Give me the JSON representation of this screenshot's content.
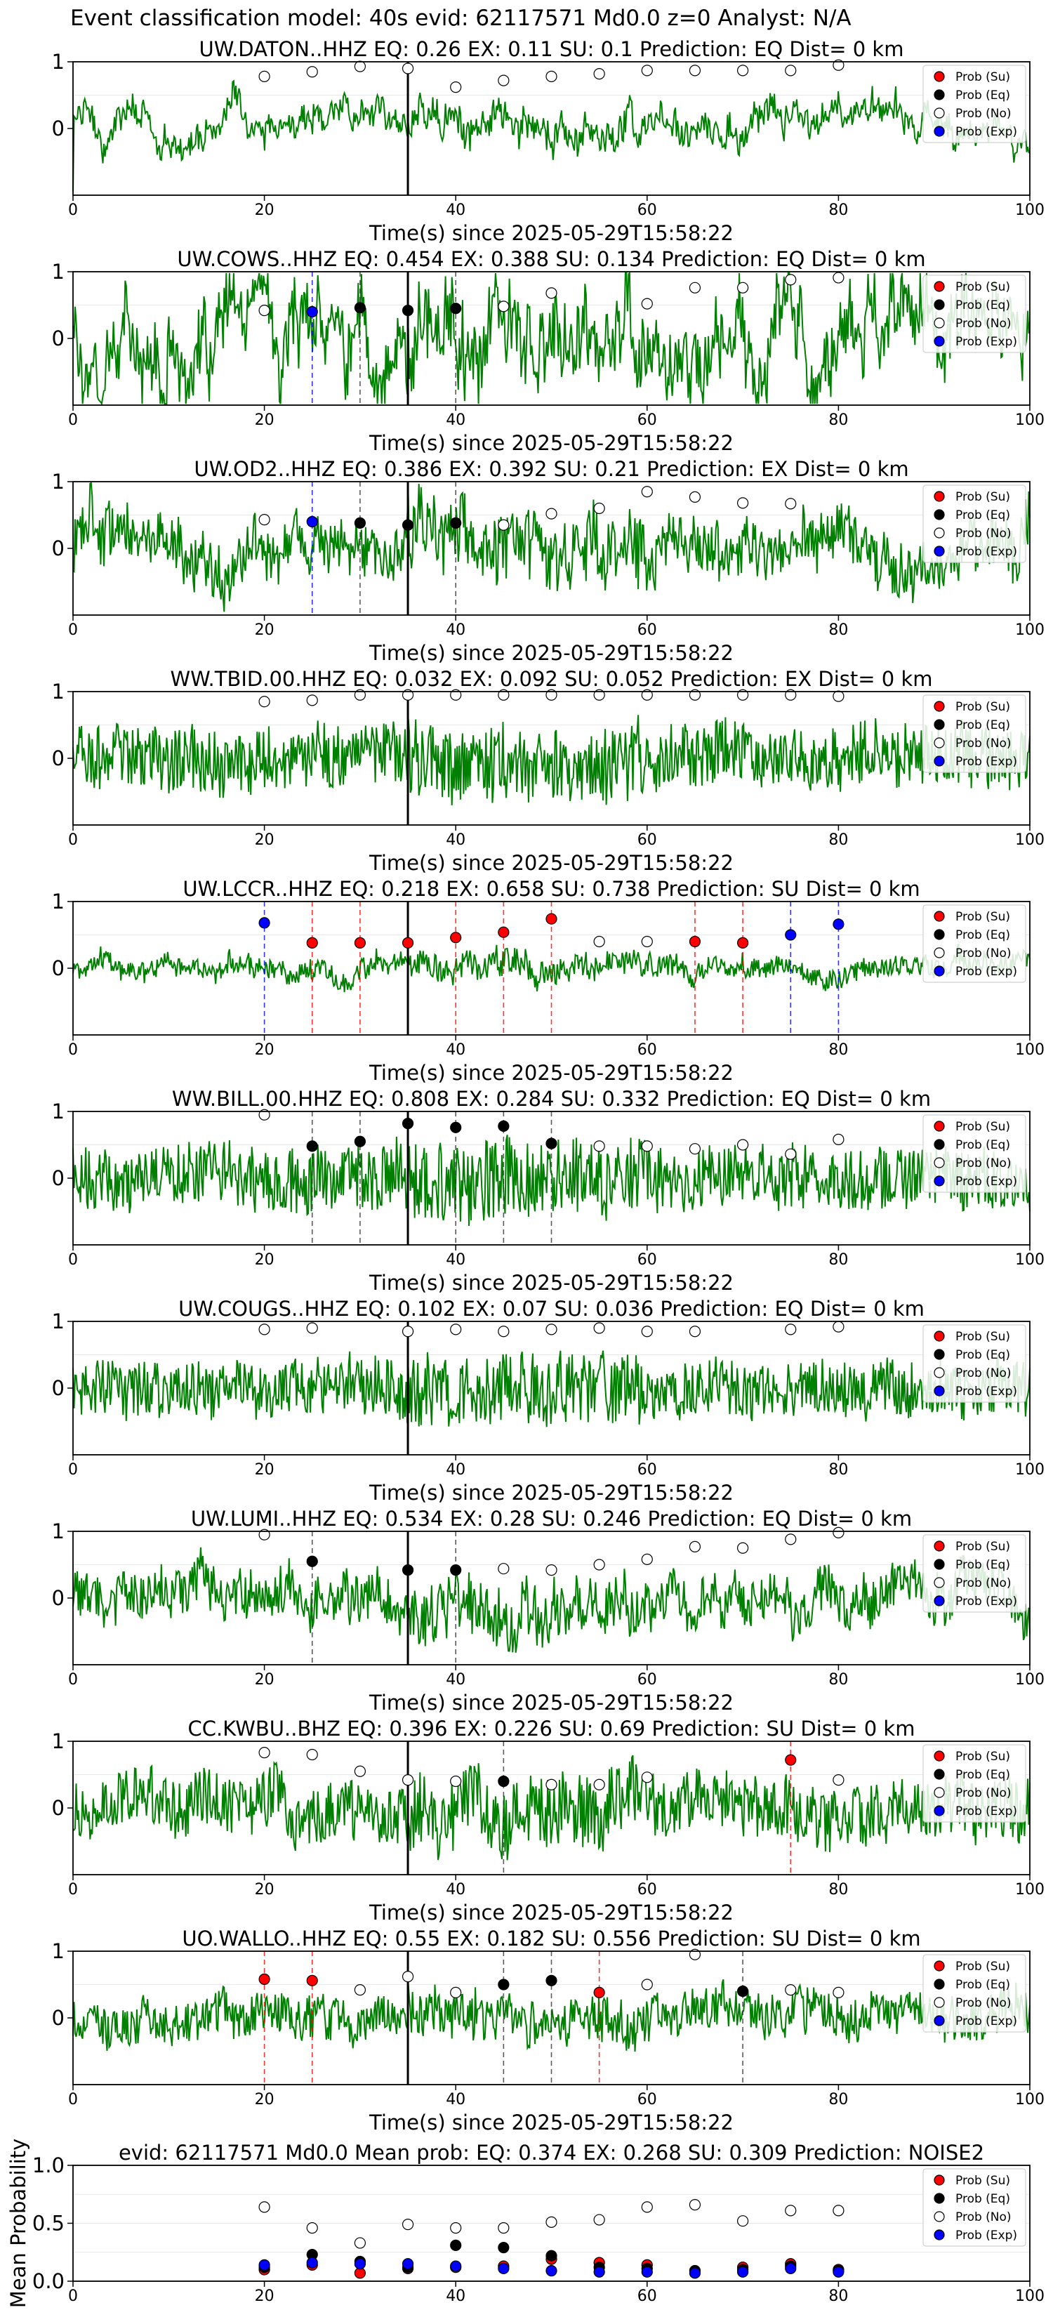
{
  "suptitle": "Event classification model: 40s evid: 62117571 Md0.0 z=0 Analyst: N/A",
  "legend_labels": [
    "Prob (Su)",
    "Prob (Eq)",
    "Prob (No)",
    "Prob (Exp)"
  ],
  "colors": {
    "su": "#ff0000",
    "eq": "#000000",
    "no": "#ffffff",
    "exp": "#0000ff",
    "trace": "#008000"
  },
  "chart_data": [
    {
      "type": "line",
      "title": "UW.DATON..HHZ   EQ: 0.26   EX: 0.11   SU: 0.1   Prediction: EQ    Dist= 0 km",
      "xlabel": "Time(s) since 2025-05-29T15:58:22",
      "xlim": [
        0,
        100
      ],
      "xticks": [
        0,
        20,
        40,
        60,
        80,
        100
      ],
      "yticks": [
        0,
        1
      ],
      "vline_black": 35,
      "amp": 0.35,
      "drift": 0.25,
      "seed": 3,
      "markers": [
        {
          "x": 20,
          "y": 0.78,
          "class": "no"
        },
        {
          "x": 25,
          "y": 0.85,
          "class": "no"
        },
        {
          "x": 30,
          "y": 0.93,
          "class": "no"
        },
        {
          "x": 35,
          "y": 0.9,
          "class": "no"
        },
        {
          "x": 40,
          "y": 0.62,
          "class": "no"
        },
        {
          "x": 45,
          "y": 0.72,
          "class": "no"
        },
        {
          "x": 50,
          "y": 0.78,
          "class": "no"
        },
        {
          "x": 55,
          "y": 0.82,
          "class": "no"
        },
        {
          "x": 60,
          "y": 0.87,
          "class": "no"
        },
        {
          "x": 65,
          "y": 0.87,
          "class": "no"
        },
        {
          "x": 70,
          "y": 0.87,
          "class": "no"
        },
        {
          "x": 75,
          "y": 0.87,
          "class": "no"
        },
        {
          "x": 80,
          "y": 0.95,
          "class": "no"
        }
      ]
    },
    {
      "type": "line",
      "title": "UW.COWS..HHZ   EQ: 0.454   EX: 0.388   SU: 0.134   Prediction: EQ    Dist= 0 km",
      "xlabel": "Time(s) since 2025-05-29T15:58:22",
      "xlim": [
        0,
        100
      ],
      "xticks": [
        0,
        20,
        40,
        60,
        80,
        100
      ],
      "yticks": [
        0,
        1
      ],
      "vline_black": 35,
      "amp": 0.9,
      "drift": 0.6,
      "seed": 7,
      "markers": [
        {
          "x": 20,
          "y": 0.42,
          "class": "no"
        },
        {
          "x": 25,
          "y": 0.4,
          "class": "exp"
        },
        {
          "x": 30,
          "y": 0.46,
          "class": "eq"
        },
        {
          "x": 35,
          "y": 0.42,
          "class": "eq"
        },
        {
          "x": 40,
          "y": 0.45,
          "class": "eq"
        },
        {
          "x": 45,
          "y": 0.48,
          "class": "no"
        },
        {
          "x": 50,
          "y": 0.68,
          "class": "no"
        },
        {
          "x": 60,
          "y": 0.52,
          "class": "no"
        },
        {
          "x": 65,
          "y": 0.76,
          "class": "no"
        },
        {
          "x": 70,
          "y": 0.76,
          "class": "no"
        },
        {
          "x": 75,
          "y": 0.88,
          "class": "no"
        },
        {
          "x": 80,
          "y": 0.91,
          "class": "no"
        }
      ]
    },
    {
      "type": "line",
      "title": "UW.OD2..HHZ   EQ: 0.386   EX: 0.392   SU: 0.21   Prediction: EX    Dist= 0 km",
      "xlabel": "Time(s) since 2025-05-29T15:58:22",
      "xlim": [
        0,
        100
      ],
      "xticks": [
        0,
        20,
        40,
        60,
        80,
        100
      ],
      "yticks": [
        0,
        1
      ],
      "vline_black": 35,
      "amp": 0.75,
      "drift": 0.3,
      "seed": 11,
      "markers": [
        {
          "x": 20,
          "y": 0.43,
          "class": "no"
        },
        {
          "x": 25,
          "y": 0.4,
          "class": "exp"
        },
        {
          "x": 30,
          "y": 0.38,
          "class": "eq"
        },
        {
          "x": 35,
          "y": 0.35,
          "class": "eq"
        },
        {
          "x": 40,
          "y": 0.38,
          "class": "eq"
        },
        {
          "x": 45,
          "y": 0.35,
          "class": "no"
        },
        {
          "x": 50,
          "y": 0.52,
          "class": "no"
        },
        {
          "x": 55,
          "y": 0.6,
          "class": "no"
        },
        {
          "x": 60,
          "y": 0.85,
          "class": "no"
        },
        {
          "x": 65,
          "y": 0.77,
          "class": "no"
        },
        {
          "x": 70,
          "y": 0.68,
          "class": "no"
        },
        {
          "x": 75,
          "y": 0.67,
          "class": "no"
        }
      ]
    },
    {
      "type": "line",
      "title": "WW.TBID.00.HHZ   EQ: 0.032   EX: 0.092   SU: 0.052   Prediction: EX    Dist= 0 km",
      "xlabel": "Time(s) since 2025-05-29T15:58:22",
      "xlim": [
        0,
        100
      ],
      "xticks": [
        0,
        20,
        40,
        60,
        80,
        100
      ],
      "yticks": [
        0,
        1
      ],
      "vline_black": 35,
      "amp": 0.95,
      "drift": 0.1,
      "seed": 19,
      "markers": [
        {
          "x": 20,
          "y": 0.85,
          "class": "no"
        },
        {
          "x": 25,
          "y": 0.87,
          "class": "no"
        },
        {
          "x": 30,
          "y": 0.95,
          "class": "no"
        },
        {
          "x": 35,
          "y": 0.95,
          "class": "no"
        },
        {
          "x": 40,
          "y": 0.95,
          "class": "no"
        },
        {
          "x": 45,
          "y": 0.95,
          "class": "no"
        },
        {
          "x": 50,
          "y": 0.95,
          "class": "no"
        },
        {
          "x": 55,
          "y": 0.95,
          "class": "no"
        },
        {
          "x": 60,
          "y": 0.95,
          "class": "no"
        },
        {
          "x": 65,
          "y": 0.95,
          "class": "no"
        },
        {
          "x": 70,
          "y": 0.95,
          "class": "no"
        },
        {
          "x": 75,
          "y": 0.95,
          "class": "no"
        },
        {
          "x": 80,
          "y": 0.93,
          "class": "no"
        }
      ]
    },
    {
      "type": "line",
      "title": "UW.LCCR..HHZ   EQ: 0.218   EX: 0.658   SU: 0.738   Prediction: SU    Dist= 0 km",
      "xlabel": "Time(s) since 2025-05-29T15:58:22",
      "xlim": [
        0,
        100
      ],
      "xticks": [
        0,
        20,
        40,
        60,
        80,
        100
      ],
      "yticks": [
        0,
        1
      ],
      "vline_black": 35,
      "amp": 0.3,
      "drift": 0.1,
      "seed": 23,
      "markers": [
        {
          "x": 20,
          "y": 0.68,
          "class": "exp"
        },
        {
          "x": 25,
          "y": 0.38,
          "class": "su"
        },
        {
          "x": 30,
          "y": 0.38,
          "class": "su"
        },
        {
          "x": 35,
          "y": 0.38,
          "class": "su"
        },
        {
          "x": 40,
          "y": 0.46,
          "class": "su"
        },
        {
          "x": 45,
          "y": 0.54,
          "class": "su"
        },
        {
          "x": 50,
          "y": 0.74,
          "class": "su"
        },
        {
          "x": 55,
          "y": 0.4,
          "class": "no"
        },
        {
          "x": 60,
          "y": 0.4,
          "class": "no"
        },
        {
          "x": 65,
          "y": 0.4,
          "class": "su"
        },
        {
          "x": 70,
          "y": 0.38,
          "class": "su"
        },
        {
          "x": 75,
          "y": 0.5,
          "class": "exp"
        },
        {
          "x": 80,
          "y": 0.66,
          "class": "exp"
        }
      ]
    },
    {
      "type": "line",
      "title": "WW.BILL.00.HHZ   EQ: 0.808   EX: 0.284   SU: 0.332   Prediction: EQ    Dist= 0 km",
      "xlabel": "Time(s) since 2025-05-29T15:58:22",
      "xlim": [
        0,
        100
      ],
      "xticks": [
        0,
        20,
        40,
        60,
        80,
        100
      ],
      "yticks": [
        0,
        1
      ],
      "vline_black": 35,
      "amp": 0.95,
      "drift": 0.1,
      "seed": 29,
      "markers": [
        {
          "x": 20,
          "y": 0.95,
          "class": "no"
        },
        {
          "x": 25,
          "y": 0.48,
          "class": "eq"
        },
        {
          "x": 30,
          "y": 0.55,
          "class": "eq"
        },
        {
          "x": 35,
          "y": 0.82,
          "class": "eq"
        },
        {
          "x": 40,
          "y": 0.76,
          "class": "eq"
        },
        {
          "x": 45,
          "y": 0.78,
          "class": "eq"
        },
        {
          "x": 50,
          "y": 0.52,
          "class": "eq"
        },
        {
          "x": 55,
          "y": 0.48,
          "class": "no"
        },
        {
          "x": 60,
          "y": 0.48,
          "class": "no"
        },
        {
          "x": 65,
          "y": 0.44,
          "class": "no"
        },
        {
          "x": 70,
          "y": 0.5,
          "class": "no"
        },
        {
          "x": 75,
          "y": 0.36,
          "class": "no"
        },
        {
          "x": 80,
          "y": 0.58,
          "class": "no"
        }
      ]
    },
    {
      "type": "line",
      "title": "UW.COUGS..HHZ   EQ: 0.102   EX: 0.07   SU: 0.036   Prediction: EQ    Dist= 0 km",
      "xlabel": "Time(s) since 2025-05-29T15:58:22",
      "xlim": [
        0,
        100
      ],
      "xticks": [
        0,
        20,
        40,
        60,
        80,
        100
      ],
      "yticks": [
        0,
        1
      ],
      "vline_black": 35,
      "amp": 0.85,
      "drift": 0.1,
      "seed": 31,
      "markers": [
        {
          "x": 20,
          "y": 0.88,
          "class": "no"
        },
        {
          "x": 25,
          "y": 0.9,
          "class": "no"
        },
        {
          "x": 35,
          "y": 0.85,
          "class": "no"
        },
        {
          "x": 40,
          "y": 0.88,
          "class": "no"
        },
        {
          "x": 45,
          "y": 0.85,
          "class": "no"
        },
        {
          "x": 50,
          "y": 0.88,
          "class": "no"
        },
        {
          "x": 55,
          "y": 0.9,
          "class": "no"
        },
        {
          "x": 60,
          "y": 0.85,
          "class": "no"
        },
        {
          "x": 65,
          "y": 0.85,
          "class": "no"
        },
        {
          "x": 75,
          "y": 0.88,
          "class": "no"
        },
        {
          "x": 80,
          "y": 0.92,
          "class": "no"
        }
      ]
    },
    {
      "type": "line",
      "title": "UW.LUMI..HHZ   EQ: 0.534   EX: 0.28   SU: 0.246   Prediction: EQ    Dist= 0 km",
      "xlabel": "Time(s) since 2025-05-29T15:58:22",
      "xlim": [
        0,
        100
      ],
      "xticks": [
        0,
        20,
        40,
        60,
        80,
        100
      ],
      "yticks": [
        0,
        1
      ],
      "vline_black": 35,
      "amp": 0.7,
      "drift": 0.2,
      "seed": 37,
      "markers": [
        {
          "x": 20,
          "y": 0.95,
          "class": "no"
        },
        {
          "x": 25,
          "y": 0.55,
          "class": "eq"
        },
        {
          "x": 35,
          "y": 0.42,
          "class": "eq"
        },
        {
          "x": 40,
          "y": 0.42,
          "class": "eq"
        },
        {
          "x": 45,
          "y": 0.44,
          "class": "no"
        },
        {
          "x": 50,
          "y": 0.42,
          "class": "no"
        },
        {
          "x": 55,
          "y": 0.5,
          "class": "no"
        },
        {
          "x": 60,
          "y": 0.58,
          "class": "no"
        },
        {
          "x": 65,
          "y": 0.77,
          "class": "no"
        },
        {
          "x": 70,
          "y": 0.75,
          "class": "no"
        },
        {
          "x": 75,
          "y": 0.88,
          "class": "no"
        },
        {
          "x": 80,
          "y": 0.98,
          "class": "no"
        }
      ]
    },
    {
      "type": "line",
      "title": "CC.KWBU..BHZ   EQ: 0.396   EX: 0.226   SU: 0.69   Prediction: SU    Dist= 0 km",
      "xlabel": "Time(s) since 2025-05-29T15:58:22",
      "xlim": [
        0,
        100
      ],
      "xticks": [
        0,
        20,
        40,
        60,
        80,
        100
      ],
      "yticks": [
        0,
        1
      ],
      "vline_black": 35,
      "amp": 0.9,
      "drift": 0.15,
      "seed": 41,
      "markers": [
        {
          "x": 20,
          "y": 0.83,
          "class": "no"
        },
        {
          "x": 25,
          "y": 0.8,
          "class": "no"
        },
        {
          "x": 30,
          "y": 0.55,
          "class": "no"
        },
        {
          "x": 35,
          "y": 0.42,
          "class": "no"
        },
        {
          "x": 40,
          "y": 0.4,
          "class": "no"
        },
        {
          "x": 45,
          "y": 0.4,
          "class": "eq"
        },
        {
          "x": 50,
          "y": 0.35,
          "class": "no"
        },
        {
          "x": 55,
          "y": 0.35,
          "class": "no"
        },
        {
          "x": 60,
          "y": 0.46,
          "class": "no"
        },
        {
          "x": 75,
          "y": 0.72,
          "class": "su"
        },
        {
          "x": 80,
          "y": 0.42,
          "class": "no"
        }
      ]
    },
    {
      "type": "line",
      "title": "UO.WALLO..HHZ   EQ: 0.55   EX: 0.182   SU: 0.556   Prediction: SU    Dist= 0 km",
      "xlabel": "Time(s) since 2025-05-29T15:58:22",
      "xlim": [
        0,
        100
      ],
      "xticks": [
        0,
        20,
        40,
        60,
        80,
        100
      ],
      "yticks": [
        0,
        1
      ],
      "vline_black": 35,
      "amp": 0.6,
      "drift": 0.15,
      "seed": 43,
      "markers": [
        {
          "x": 20,
          "y": 0.58,
          "class": "su"
        },
        {
          "x": 25,
          "y": 0.56,
          "class": "su"
        },
        {
          "x": 30,
          "y": 0.42,
          "class": "no"
        },
        {
          "x": 35,
          "y": 0.62,
          "class": "no"
        },
        {
          "x": 40,
          "y": 0.38,
          "class": "no"
        },
        {
          "x": 45,
          "y": 0.5,
          "class": "eq"
        },
        {
          "x": 50,
          "y": 0.56,
          "class": "eq"
        },
        {
          "x": 55,
          "y": 0.38,
          "class": "su"
        },
        {
          "x": 60,
          "y": 0.5,
          "class": "no"
        },
        {
          "x": 65,
          "y": 0.95,
          "class": "no"
        },
        {
          "x": 70,
          "y": 0.4,
          "class": "eq"
        },
        {
          "x": 75,
          "y": 0.42,
          "class": "no"
        },
        {
          "x": 80,
          "y": 0.38,
          "class": "no"
        }
      ]
    },
    {
      "type": "scatter",
      "title": "evid: 62117571  Md0.0   Mean prob:   EQ: 0.374  EX: 0.268  SU: 0.309   Prediction: NOISE2",
      "xlabel": "",
      "ylabel": "Mean Probability",
      "xlim": [
        0,
        100
      ],
      "ylim": [
        0,
        1
      ],
      "xticks": [
        0,
        20,
        40,
        60,
        80,
        100
      ],
      "yticks": [
        0.0,
        0.5,
        1.0
      ],
      "series": [
        {
          "name": "Prob (Su)",
          "class": "su",
          "x": [
            20,
            25,
            30,
            35,
            40,
            45,
            50,
            55,
            60,
            65,
            70,
            75,
            80
          ],
          "y": [
            0.1,
            0.14,
            0.07,
            0.11,
            0.12,
            0.13,
            0.19,
            0.16,
            0.14,
            0.09,
            0.12,
            0.15,
            0.1
          ]
        },
        {
          "name": "Prob (Eq)",
          "class": "eq",
          "x": [
            20,
            25,
            30,
            35,
            40,
            45,
            50,
            55,
            60,
            65,
            70,
            75,
            80
          ],
          "y": [
            0.12,
            0.23,
            0.17,
            0.12,
            0.31,
            0.29,
            0.22,
            0.12,
            0.11,
            0.09,
            0.1,
            0.13,
            0.09
          ]
        },
        {
          "name": "Prob (No)",
          "class": "no",
          "x": [
            20,
            25,
            30,
            35,
            40,
            45,
            50,
            55,
            60,
            65,
            70,
            75,
            80
          ],
          "y": [
            0.64,
            0.46,
            0.33,
            0.49,
            0.46,
            0.46,
            0.51,
            0.53,
            0.64,
            0.66,
            0.52,
            0.61,
            0.61
          ]
        },
        {
          "name": "Prob (Exp)",
          "class": "exp",
          "x": [
            20,
            25,
            30,
            35,
            40,
            45,
            50,
            55,
            60,
            65,
            70,
            75,
            80
          ],
          "y": [
            0.14,
            0.16,
            0.15,
            0.15,
            0.13,
            0.11,
            0.09,
            0.08,
            0.08,
            0.07,
            0.08,
            0.11,
            0.08
          ]
        }
      ]
    }
  ]
}
